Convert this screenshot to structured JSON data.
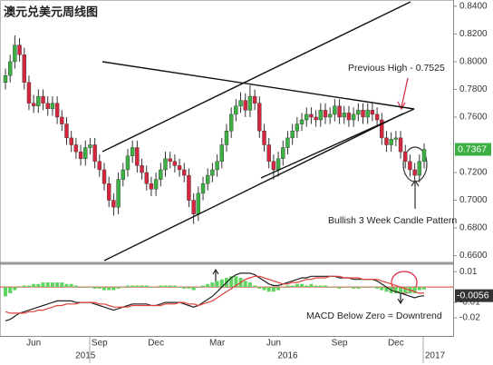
{
  "chart_data": [
    {
      "type": "candlestick",
      "title": "澳元兑美元周线图",
      "up_color": "#3cb043",
      "down_color": "#d6263e",
      "ylim": [
        0.6545,
        0.8445
      ],
      "yticks": [
        {
          "value": 0.84,
          "label": "0.8400"
        },
        {
          "value": 0.82,
          "label": "0.8200"
        },
        {
          "value": 0.8,
          "label": "0.8000"
        },
        {
          "value": 0.78,
          "label": "0.7800"
        },
        {
          "value": 0.76,
          "label": "0.7600"
        },
        {
          "value": 0.72,
          "label": "0.7200"
        },
        {
          "value": 0.7,
          "label": "0.7000"
        },
        {
          "value": 0.68,
          "label": "0.6800"
        },
        {
          "value": 0.66,
          "label": "0.6600"
        }
      ],
      "grid": false,
      "categories": [
        null,
        null,
        null,
        null,
        null,
        null,
        "Jun",
        null,
        null,
        null,
        null,
        null,
        null,
        null,
        null,
        null,
        null,
        null,
        null,
        null,
        "Sep",
        null,
        null,
        null,
        null,
        null,
        null,
        null,
        null,
        null,
        null,
        null,
        "Dec",
        null,
        null,
        null,
        null,
        null,
        null,
        null,
        null,
        null,
        null,
        null,
        null,
        "Mar",
        null,
        null,
        null,
        null,
        null,
        null,
        null,
        null,
        null,
        null,
        null,
        "Jun",
        null,
        null,
        null,
        null,
        null,
        null,
        null,
        null,
        null,
        null,
        null,
        null,
        null,
        "Sep",
        null,
        null,
        null,
        null,
        null,
        null,
        null,
        null,
        null,
        null,
        null,
        "Dec",
        null,
        null,
        null,
        null,
        null,
        null
      ],
      "year_categories": [
        null,
        null,
        null,
        null,
        null,
        null,
        null,
        null,
        null,
        null,
        null,
        null,
        null,
        null,
        null,
        null,
        null,
        "2015",
        null,
        null,
        null,
        null,
        null,
        null,
        null,
        null,
        null,
        null,
        null,
        null,
        null,
        null,
        null,
        null,
        null,
        null,
        null,
        null,
        null,
        null,
        null,
        null,
        null,
        null,
        null,
        null,
        null,
        null,
        null,
        null,
        null,
        null,
        null,
        null,
        null,
        null,
        null,
        null,
        null,
        null,
        "2016",
        null,
        null,
        null,
        null,
        null,
        null,
        null,
        null,
        null,
        null,
        null,
        null,
        null,
        null,
        null,
        null,
        null,
        null,
        null,
        null,
        null,
        null,
        null,
        null,
        null,
        null,
        null,
        null,
        "2017"
      ],
      "candles": [
        [
          0.785,
          0.795,
          0.78,
          0.79
        ],
        [
          0.79,
          0.805,
          0.785,
          0.8
        ],
        [
          0.8,
          0.819,
          0.795,
          0.812
        ],
        [
          0.812,
          0.817,
          0.8,
          0.805
        ],
        [
          0.805,
          0.81,
          0.78,
          0.785
        ],
        [
          0.785,
          0.79,
          0.765,
          0.77
        ],
        [
          0.77,
          0.776,
          0.763,
          0.768
        ],
        [
          0.768,
          0.78,
          0.763,
          0.775
        ],
        [
          0.775,
          0.78,
          0.765,
          0.77
        ],
        [
          0.77,
          0.775,
          0.761,
          0.766
        ],
        [
          0.766,
          0.775,
          0.761,
          0.77
        ],
        [
          0.77,
          0.775,
          0.755,
          0.76
        ],
        [
          0.76,
          0.765,
          0.75,
          0.755
        ],
        [
          0.755,
          0.76,
          0.74,
          0.745
        ],
        [
          0.745,
          0.75,
          0.735,
          0.74
        ],
        [
          0.74,
          0.745,
          0.73,
          0.735
        ],
        [
          0.735,
          0.74,
          0.725,
          0.73
        ],
        [
          0.73,
          0.743,
          0.725,
          0.738
        ],
        [
          0.738,
          0.745,
          0.733,
          0.74
        ],
        [
          0.74,
          0.745,
          0.723,
          0.728
        ],
        [
          0.728,
          0.733,
          0.717,
          0.722
        ],
        [
          0.722,
          0.727,
          0.707,
          0.712
        ],
        [
          0.712,
          0.717,
          0.695,
          0.7
        ],
        [
          0.7,
          0.705,
          0.689,
          0.695
        ],
        [
          0.695,
          0.72,
          0.69,
          0.715
        ],
        [
          0.715,
          0.727,
          0.71,
          0.722
        ],
        [
          0.722,
          0.737,
          0.717,
          0.732
        ],
        [
          0.732,
          0.743,
          0.727,
          0.738
        ],
        [
          0.738,
          0.743,
          0.72,
          0.725
        ],
        [
          0.725,
          0.73,
          0.715,
          0.72
        ],
        [
          0.72,
          0.725,
          0.707,
          0.712
        ],
        [
          0.712,
          0.717,
          0.703,
          0.708
        ],
        [
          0.708,
          0.72,
          0.703,
          0.715
        ],
        [
          0.715,
          0.727,
          0.71,
          0.722
        ],
        [
          0.722,
          0.735,
          0.717,
          0.73
        ],
        [
          0.73,
          0.735,
          0.723,
          0.728
        ],
        [
          0.728,
          0.733,
          0.72,
          0.725
        ],
        [
          0.725,
          0.73,
          0.717,
          0.722
        ],
        [
          0.722,
          0.727,
          0.713,
          0.718
        ],
        [
          0.718,
          0.723,
          0.695,
          0.7
        ],
        [
          0.7,
          0.705,
          0.683,
          0.69
        ],
        [
          0.69,
          0.71,
          0.685,
          0.705
        ],
        [
          0.705,
          0.717,
          0.7,
          0.712
        ],
        [
          0.712,
          0.723,
          0.707,
          0.718
        ],
        [
          0.718,
          0.727,
          0.713,
          0.722
        ],
        [
          0.722,
          0.733,
          0.717,
          0.728
        ],
        [
          0.728,
          0.745,
          0.723,
          0.74
        ],
        [
          0.74,
          0.755,
          0.735,
          0.75
        ],
        [
          0.75,
          0.767,
          0.745,
          0.762
        ],
        [
          0.762,
          0.773,
          0.757,
          0.768
        ],
        [
          0.768,
          0.778,
          0.763,
          0.772
        ],
        [
          0.772,
          0.777,
          0.76,
          0.765
        ],
        [
          0.765,
          0.783,
          0.76,
          0.775
        ],
        [
          0.775,
          0.78,
          0.765,
          0.77
        ],
        [
          0.77,
          0.775,
          0.745,
          0.75
        ],
        [
          0.75,
          0.755,
          0.735,
          0.74
        ],
        [
          0.74,
          0.745,
          0.723,
          0.728
        ],
        [
          0.728,
          0.733,
          0.715,
          0.722
        ],
        [
          0.722,
          0.735,
          0.717,
          0.73
        ],
        [
          0.73,
          0.743,
          0.725,
          0.738
        ],
        [
          0.738,
          0.75,
          0.733,
          0.745
        ],
        [
          0.745,
          0.755,
          0.74,
          0.75
        ],
        [
          0.75,
          0.76,
          0.745,
          0.755
        ],
        [
          0.755,
          0.763,
          0.75,
          0.758
        ],
        [
          0.758,
          0.767,
          0.753,
          0.762
        ],
        [
          0.762,
          0.767,
          0.755,
          0.76
        ],
        [
          0.76,
          0.765,
          0.753,
          0.758
        ],
        [
          0.758,
          0.77,
          0.753,
          0.765
        ],
        [
          0.765,
          0.77,
          0.755,
          0.76
        ],
        [
          0.76,
          0.767,
          0.755,
          0.762
        ],
        [
          0.762,
          0.773,
          0.757,
          0.768
        ],
        [
          0.768,
          0.773,
          0.755,
          0.76
        ],
        [
          0.76,
          0.768,
          0.755,
          0.763
        ],
        [
          0.763,
          0.768,
          0.753,
          0.758
        ],
        [
          0.758,
          0.767,
          0.753,
          0.762
        ],
        [
          0.762,
          0.77,
          0.757,
          0.765
        ],
        [
          0.765,
          0.77,
          0.755,
          0.76
        ],
        [
          0.76,
          0.77,
          0.755,
          0.765
        ],
        [
          0.765,
          0.77,
          0.757,
          0.762
        ],
        [
          0.762,
          0.767,
          0.753,
          0.758
        ],
        [
          0.758,
          0.763,
          0.74,
          0.745
        ],
        [
          0.745,
          0.75,
          0.735,
          0.74
        ],
        [
          0.74,
          0.749,
          0.735,
          0.744
        ],
        [
          0.744,
          0.75,
          0.739,
          0.745
        ],
        [
          0.745,
          0.75,
          0.73,
          0.735
        ],
        [
          0.735,
          0.74,
          0.723,
          0.728
        ],
        [
          0.728,
          0.733,
          0.717,
          0.722
        ],
        [
          0.722,
          0.727,
          0.713,
          0.718
        ],
        [
          0.718,
          0.733,
          0.713,
          0.728
        ],
        [
          0.728,
          0.741,
          0.723,
          0.7367
        ]
      ],
      "annotations": [
        "Previous High - 0.7525",
        "Bullish 3 Week Candle Pattern"
      ]
    },
    {
      "type": "macd",
      "ylim": [
        -0.0318,
        0.0131
      ],
      "yticks": [
        0.01,
        -0.01,
        -0.02
      ],
      "series": [
        {
          "style": "bar",
          "color": "#5fd35f",
          "values": [
            -0.006,
            -0.004,
            -0.002,
            0,
            0.001,
            0.001,
            0.002,
            0.002,
            0.003,
            0.003,
            0.003,
            0.003,
            0.003,
            0.002,
            0.002,
            0.001,
            0,
            0,
            0,
            -0.001,
            -0.001,
            -0.002,
            -0.002,
            -0.002,
            -0.001,
            0,
            0.001,
            0.001,
            0.001,
            0.001,
            0.001,
            0,
            0,
            0.001,
            0.001,
            0.001,
            0.001,
            0,
            -0.001,
            -0.001,
            -0.002,
            0,
            0.001,
            0.002,
            0.003,
            0.004,
            0.005,
            0.006,
            0.007,
            0.007,
            0.006,
            0.004,
            0.003,
            0.001,
            -0.001,
            -0.002,
            -0.003,
            -0.003,
            -0.002,
            0,
            0.001,
            0.001,
            0.002,
            0.002,
            0.001,
            0.002,
            0.001,
            0.001,
            0.001,
            0,
            0,
            -0.001,
            0,
            0,
            -0.001,
            -0.001,
            0,
            0,
            0,
            -0.001,
            -0.002,
            -0.003,
            -0.004,
            -0.004,
            -0.004,
            -0.004,
            -0.004,
            -0.004,
            -0.002,
            -0.0016
          ]
        },
        {
          "style": "line",
          "color": "#222222",
          "values": [
            -0.022,
            -0.021,
            -0.019,
            -0.017,
            -0.016,
            -0.015,
            -0.014,
            -0.013,
            -0.012,
            -0.011,
            -0.01,
            -0.009,
            -0.009,
            -0.009,
            -0.009,
            -0.01,
            -0.01,
            -0.01,
            -0.01,
            -0.011,
            -0.012,
            -0.013,
            -0.014,
            -0.015,
            -0.014,
            -0.013,
            -0.012,
            -0.011,
            -0.011,
            -0.011,
            -0.011,
            -0.012,
            -0.012,
            -0.011,
            -0.01,
            -0.01,
            -0.01,
            -0.01,
            -0.011,
            -0.012,
            -0.013,
            -0.012,
            -0.01,
            -0.008,
            -0.006,
            -0.003,
            0,
            0.003,
            0.006,
            0.008,
            0.009,
            0.009,
            0.009,
            0.008,
            0.006,
            0.004,
            0.002,
            0.001,
            0.001,
            0.002,
            0.003,
            0.004,
            0.005,
            0.006,
            0.006,
            0.007,
            0.007,
            0.007,
            0.007,
            0.007,
            0.007,
            0.006,
            0.006,
            0.006,
            0.005,
            0.005,
            0.005,
            0.005,
            0.005,
            0.004,
            0.002,
            0,
            -0.002,
            -0.003,
            -0.004,
            -0.005,
            -0.006,
            -0.007,
            -0.006,
            -0.0056
          ]
        },
        {
          "style": "line",
          "color": "#e0403a",
          "values": [
            -0.016,
            -0.017,
            -0.017,
            -0.017,
            -0.017,
            -0.016,
            -0.016,
            -0.015,
            -0.015,
            -0.014,
            -0.013,
            -0.012,
            -0.012,
            -0.011,
            -0.011,
            -0.011,
            -0.01,
            -0.01,
            -0.01,
            -0.01,
            -0.011,
            -0.011,
            -0.012,
            -0.013,
            -0.013,
            -0.013,
            -0.013,
            -0.012,
            -0.012,
            -0.012,
            -0.012,
            -0.012,
            -0.012,
            -0.012,
            -0.011,
            -0.011,
            -0.011,
            -0.01,
            -0.01,
            -0.011,
            -0.011,
            -0.012,
            -0.011,
            -0.01,
            -0.009,
            -0.007,
            -0.005,
            -0.003,
            -0.001,
            0.001,
            0.003,
            0.005,
            0.006,
            0.007,
            0.007,
            0.006,
            0.005,
            0.004,
            0.003,
            0.002,
            0.002,
            0.003,
            0.003,
            0.004,
            0.005,
            0.005,
            0.006,
            0.006,
            0.006,
            0.007,
            0.007,
            0.007,
            0.006,
            0.006,
            0.006,
            0.006,
            0.005,
            0.005,
            0.005,
            0.005,
            0.004,
            0.003,
            0.002,
            0.001,
            0,
            -0.001,
            -0.002,
            -0.003,
            -0.004,
            -0.004
          ]
        }
      ],
      "annotations": [
        "MACD Below Zero = Downtrend"
      ]
    }
  ]
}
